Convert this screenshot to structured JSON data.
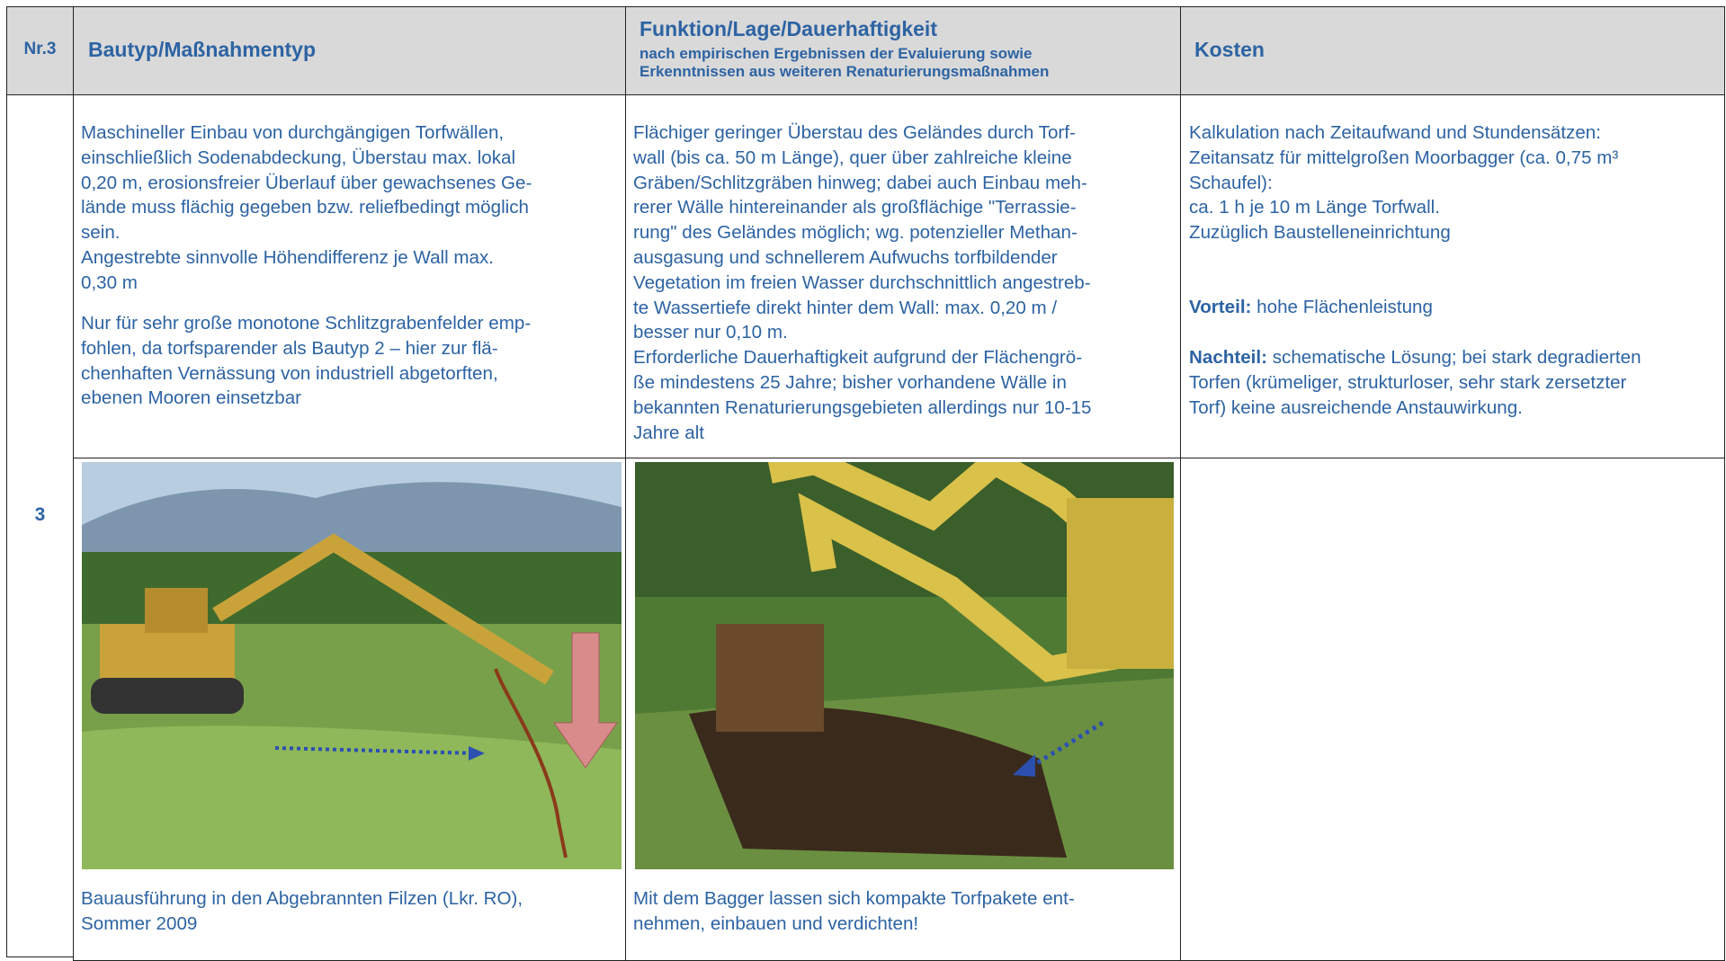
{
  "header": {
    "nr": "Nr.3",
    "bautyp": "Bautyp/Maßnahmentyp",
    "funktion": {
      "title": "Funktion/Lage/Dauerhaftigkeit",
      "subtitle": [
        "nach empirischen Ergebnissen der Evaluierung sowie",
        "Erkenntnissen aus weiteren Renaturierungsmaßnahmen"
      ]
    },
    "kosten": "Kosten"
  },
  "row": {
    "number": "3",
    "bautyp": [
      [
        "Maschineller Einbau von durchgängigen Torfwällen,",
        "einschließlich Sodenabdeckung, Überstau max. lokal",
        "0,20 m, erosionsfreier Überlauf über gewachsenes Ge-",
        "lände muss flächig gegeben bzw. reliefbedingt möglich",
        "sein.",
        "Angestrebte sinnvolle Höhendifferenz je Wall max.",
        "0,30 m"
      ],
      [
        "Nur für sehr große monotone Schlitzgrabenfelder emp-",
        "fohlen, da torfsparender als Bautyp 2 – hier zur flä-",
        "chenhaften Vernässung von industriell abgetorften,",
        "ebenen Mooren einsetzbar"
      ]
    ],
    "funktion": [
      [
        "Flächiger geringer Überstau des Geländes durch Torf-",
        "wall (bis ca. 50 m Länge), quer über zahlreiche kleine",
        "Gräben/Schlitzgräben hinweg; dabei auch Einbau meh-",
        "rerer Wälle hintereinander als großflächige \"Terrassie-",
        "rung\" des Geländes möglich; wg. potenzieller Methan-",
        "ausgasung und schnellerem Aufwuchs torfbildender",
        "Vegetation im freien Wasser durchschnittlich angestreb-",
        "te Wassertiefe direkt hinter dem Wall: max. 0,20 m /",
        "besser nur 0,10 m.",
        "Erforderliche Dauerhaftigkeit aufgrund der Flächengrö-",
        "ße mindestens 25 Jahre; bisher vorhandene Wälle in",
        "bekannten Renaturierungsgebieten allerdings nur 10-15",
        "Jahre alt"
      ]
    ],
    "kosten": {
      "lines": [
        "Kalkulation nach Zeitaufwand und Stundensätzen:",
        "Zeitansatz für mittelgroßen Moorbagger (ca. 0,75 m³",
        "Schaufel):",
        "ca. 1 h je 10 m Länge Torfwall.",
        "Zuzüglich Baustelleneinrichtung"
      ],
      "vorteil": {
        "label": "Vorteil:",
        "text": "hohe Flächenleistung"
      },
      "nachteil": {
        "label": "Nachteil:",
        "lines": [
          "schematische Lösung; bei stark degradierten",
          "Torfen (krümeliger, strukturloser, sehr stark zersetzter",
          "Torf) keine ausreichende Anstauwirkung."
        ]
      }
    }
  },
  "captions": [
    [
      "Bauausführung in den Abgebrannten Filzen (Lkr. RO),",
      "Sommer 2009"
    ],
    [
      "Mit dem Bagger lassen sich kompakte Torfpakete ent-",
      "nehmen, einbauen und verdichten!"
    ]
  ]
}
